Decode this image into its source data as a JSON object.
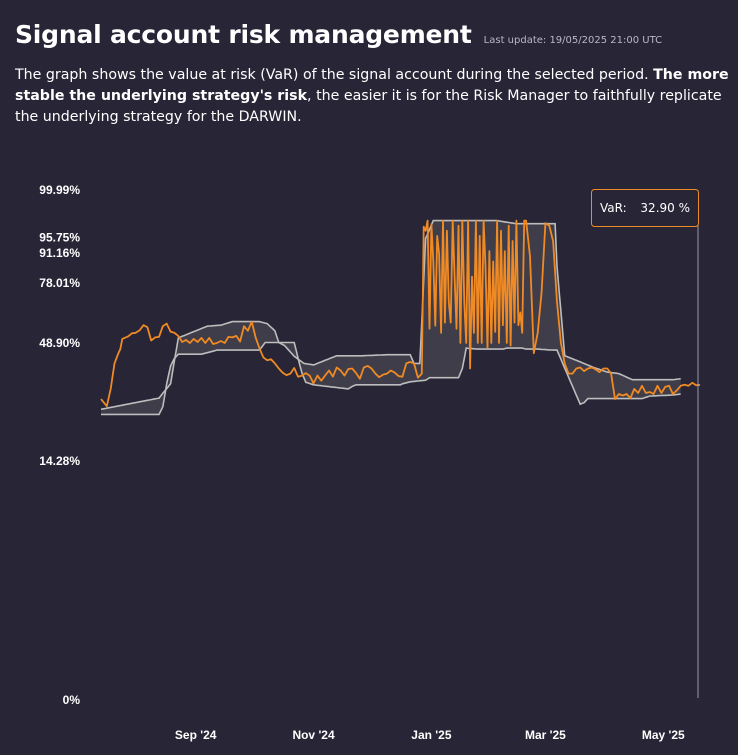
{
  "header": {
    "title": "Signal account risk management",
    "last_update": "Last update: 19/05/2025 21:00 UTC"
  },
  "description": {
    "part1": "The graph shows the value at risk (VaR) of the signal account during the selected period. ",
    "bold": "The more stable the underlying strategy's risk",
    "part2": ", the easier it is for the Risk Manager to faithfully replicate the underlying strategy for the DARWIN."
  },
  "tooltip": {
    "label": "VaR:",
    "value": "32.90 %"
  },
  "colors": {
    "background": "#272536",
    "var_line": "#f08a24",
    "band_fill": "#3f3d49",
    "band_line": "#bdbdbd",
    "tooltip_border": "#f08a24"
  },
  "chart_data": {
    "type": "area",
    "y_tick_labels": [
      "99.99%",
      "95.75%",
      "91.16%",
      "78.01%",
      "48.90%",
      "14.28%",
      "0%"
    ],
    "y_tick_fractions": [
      1.0,
      0.907,
      0.876,
      0.818,
      0.7,
      0.469,
      0.0
    ],
    "x_tick_labels": [
      "Sep '24",
      "Nov '24",
      "Jan '25",
      "Mar '25",
      "May '25"
    ],
    "x_tick_days": [
      49,
      110,
      171,
      230,
      291
    ],
    "x_range": [
      0,
      310
    ],
    "legend": "none",
    "grid": false,
    "band": {
      "lower_keys": [
        [
          0,
          0.56
        ],
        [
          30,
          0.56
        ],
        [
          32,
          0.575
        ],
        [
          34,
          0.62
        ],
        [
          36,
          0.655
        ],
        [
          38,
          0.67
        ],
        [
          40,
          0.678
        ],
        [
          52,
          0.678
        ],
        [
          60,
          0.686
        ],
        [
          70,
          0.686
        ],
        [
          82,
          0.686
        ],
        [
          85,
          0.701
        ],
        [
          100,
          0.701
        ],
        [
          102,
          0.67
        ],
        [
          104,
          0.641
        ],
        [
          106,
          0.623
        ],
        [
          110,
          0.618
        ],
        [
          128,
          0.61
        ],
        [
          130,
          0.615
        ],
        [
          132,
          0.618
        ],
        [
          155,
          0.618
        ],
        [
          156,
          0.62
        ],
        [
          160,
          0.624
        ],
        [
          168,
          0.627
        ],
        [
          170,
          0.632
        ],
        [
          185,
          0.632
        ],
        [
          187,
          0.65
        ],
        [
          189,
          0.69
        ],
        [
          195,
          0.688
        ],
        [
          200,
          0.688
        ],
        [
          208,
          0.688
        ],
        [
          210,
          0.69
        ],
        [
          218,
          0.69
        ],
        [
          220,
          0.688
        ],
        [
          226,
          0.688
        ],
        [
          234,
          0.686
        ],
        [
          236,
          0.686
        ],
        [
          248,
          0.58
        ],
        [
          250,
          0.583
        ],
        [
          252,
          0.591
        ],
        [
          260,
          0.591
        ],
        [
          272,
          0.591
        ],
        [
          274,
          0.591
        ],
        [
          280,
          0.591
        ],
        [
          284,
          0.596
        ],
        [
          296,
          0.598
        ],
        [
          300,
          0.6
        ]
      ],
      "upper_keys": [
        [
          0,
          0.57
        ],
        [
          30,
          0.592
        ],
        [
          36,
          0.62
        ],
        [
          40,
          0.71
        ],
        [
          55,
          0.733
        ],
        [
          62,
          0.735
        ],
        [
          68,
          0.742
        ],
        [
          70,
          0.742
        ],
        [
          82,
          0.742
        ],
        [
          86,
          0.738
        ],
        [
          90,
          0.724
        ],
        [
          92,
          0.701
        ],
        [
          95,
          0.695
        ],
        [
          100,
          0.674
        ],
        [
          105,
          0.66
        ],
        [
          110,
          0.657
        ],
        [
          122,
          0.675
        ],
        [
          135,
          0.675
        ],
        [
          148,
          0.677
        ],
        [
          154,
          0.677
        ],
        [
          159,
          0.677
        ],
        [
          160,
          0.677
        ],
        [
          162,
          0.66
        ],
        [
          165,
          0.66
        ],
        [
          168,
          0.905
        ],
        [
          172,
          0.94
        ],
        [
          182,
          0.94
        ],
        [
          193,
          0.94
        ],
        [
          205,
          0.94
        ],
        [
          208,
          0.938
        ],
        [
          215,
          0.934
        ],
        [
          220,
          0.934
        ],
        [
          235,
          0.934
        ],
        [
          236,
          0.85
        ],
        [
          240,
          0.675
        ],
        [
          248,
          0.663
        ],
        [
          255,
          0.652
        ],
        [
          262,
          0.643
        ],
        [
          268,
          0.64
        ],
        [
          275,
          0.628
        ],
        [
          280,
          0.628
        ],
        [
          288,
          0.628
        ],
        [
          296,
          0.628
        ],
        [
          300,
          0.63
        ]
      ]
    },
    "var_series": {
      "last_value_pct": 32.9,
      "keys": [
        [
          0,
          0.59
        ],
        [
          3,
          0.576
        ],
        [
          5,
          0.61
        ],
        [
          7,
          0.66
        ],
        [
          9,
          0.68
        ],
        [
          10,
          0.688
        ],
        [
          11,
          0.708
        ],
        [
          14,
          0.713
        ],
        [
          16,
          0.719
        ],
        [
          18,
          0.72
        ],
        [
          20,
          0.725
        ],
        [
          22,
          0.735
        ],
        [
          24,
          0.731
        ],
        [
          26,
          0.705
        ],
        [
          28,
          0.711
        ],
        [
          30,
          0.712
        ],
        [
          32,
          0.733
        ],
        [
          34,
          0.738
        ],
        [
          36,
          0.722
        ],
        [
          38,
          0.72
        ],
        [
          40,
          0.714
        ],
        [
          42,
          0.702
        ],
        [
          44,
          0.706
        ],
        [
          46,
          0.7
        ],
        [
          48,
          0.708
        ],
        [
          50,
          0.702
        ],
        [
          52,
          0.71
        ],
        [
          54,
          0.7
        ],
        [
          56,
          0.71
        ],
        [
          58,
          0.698
        ],
        [
          60,
          0.7
        ],
        [
          62,
          0.704
        ],
        [
          64,
          0.7
        ],
        [
          66,
          0.712
        ],
        [
          68,
          0.711
        ],
        [
          70,
          0.714
        ],
        [
          72,
          0.703
        ],
        [
          74,
          0.733
        ],
        [
          76,
          0.724
        ],
        [
          78,
          0.742
        ],
        [
          80,
          0.711
        ],
        [
          82,
          0.69
        ],
        [
          84,
          0.672
        ],
        [
          86,
          0.666
        ],
        [
          88,
          0.668
        ],
        [
          90,
          0.66
        ],
        [
          92,
          0.65
        ],
        [
          94,
          0.642
        ],
        [
          96,
          0.637
        ],
        [
          98,
          0.64
        ],
        [
          100,
          0.651
        ],
        [
          102,
          0.634
        ],
        [
          104,
          0.636
        ],
        [
          106,
          0.641
        ],
        [
          108,
          0.636
        ],
        [
          110,
          0.621
        ],
        [
          112,
          0.636
        ],
        [
          114,
          0.626
        ],
        [
          116,
          0.636
        ],
        [
          118,
          0.646
        ],
        [
          120,
          0.634
        ],
        [
          122,
          0.652
        ],
        [
          124,
          0.646
        ],
        [
          126,
          0.636
        ],
        [
          128,
          0.649
        ],
        [
          130,
          0.65
        ],
        [
          132,
          0.641
        ],
        [
          134,
          0.63
        ],
        [
          136,
          0.652
        ],
        [
          138,
          0.655
        ],
        [
          140,
          0.65
        ],
        [
          142,
          0.64
        ],
        [
          144,
          0.633
        ],
        [
          146,
          0.638
        ],
        [
          148,
          0.64
        ],
        [
          150,
          0.646
        ],
        [
          152,
          0.642
        ],
        [
          154,
          0.635
        ],
        [
          156,
          0.634
        ],
        [
          158,
          0.66
        ],
        [
          160,
          0.663
        ],
        [
          162,
          0.66
        ],
        [
          164,
          0.632
        ],
        [
          166,
          0.64
        ],
        [
          167,
          0.928
        ],
        [
          168,
          0.92
        ],
        [
          169,
          0.94
        ],
        [
          170,
          0.728
        ],
        [
          171,
          0.933
        ],
        [
          172,
          0.86
        ],
        [
          173,
          0.734
        ],
        [
          174,
          0.91
        ],
        [
          175,
          0.875
        ],
        [
          176,
          0.72
        ],
        [
          177,
          0.94
        ],
        [
          178,
          0.74
        ],
        [
          179,
          0.92
        ],
        [
          180,
          0.78
        ],
        [
          181,
          0.74
        ],
        [
          182,
          0.94
        ],
        [
          183,
          0.83
        ],
        [
          184,
          0.728
        ],
        [
          185,
          0.93
        ],
        [
          186,
          0.7
        ],
        [
          187,
          0.94
        ],
        [
          188,
          0.78
        ],
        [
          189,
          0.7
        ],
        [
          190,
          0.94
        ],
        [
          191,
          0.65
        ],
        [
          192,
          0.83
        ],
        [
          193,
          0.72
        ],
        [
          194,
          0.94
        ],
        [
          195,
          0.7
        ],
        [
          196,
          0.91
        ],
        [
          197,
          0.7
        ],
        [
          198,
          0.94
        ],
        [
          199,
          0.85
        ],
        [
          200,
          0.69
        ],
        [
          201,
          0.88
        ],
        [
          202,
          0.7
        ],
        [
          203,
          0.86
        ],
        [
          204,
          0.722
        ],
        [
          205,
          0.94
        ],
        [
          206,
          0.7
        ],
        [
          207,
          0.92
        ],
        [
          208,
          0.735
        ],
        [
          209,
          0.88
        ],
        [
          210,
          0.7
        ],
        [
          211,
          0.93
        ],
        [
          212,
          0.695
        ],
        [
          213,
          0.9
        ],
        [
          214,
          0.74
        ],
        [
          215,
          0.94
        ],
        [
          216,
          0.735
        ],
        [
          217,
          0.76
        ],
        [
          218,
          0.72
        ],
        [
          219,
          0.94
        ],
        [
          220,
          0.94
        ],
        [
          222,
          0.87
        ],
        [
          224,
          0.68
        ],
        [
          226,
          0.72
        ],
        [
          228,
          0.8
        ],
        [
          230,
          0.935
        ],
        [
          232,
          0.93
        ],
        [
          234,
          0.9
        ],
        [
          236,
          0.78
        ],
        [
          238,
          0.7
        ],
        [
          240,
          0.66
        ],
        [
          242,
          0.64
        ],
        [
          244,
          0.64
        ],
        [
          246,
          0.65
        ],
        [
          248,
          0.652
        ],
        [
          250,
          0.645
        ],
        [
          252,
          0.65
        ],
        [
          254,
          0.652
        ],
        [
          256,
          0.648
        ],
        [
          258,
          0.643
        ],
        [
          260,
          0.65
        ],
        [
          262,
          0.65
        ],
        [
          264,
          0.64
        ],
        [
          266,
          0.59
        ],
        [
          268,
          0.6
        ],
        [
          270,
          0.597
        ],
        [
          272,
          0.6
        ],
        [
          274,
          0.592
        ],
        [
          276,
          0.61
        ],
        [
          278,
          0.602
        ],
        [
          280,
          0.616
        ],
        [
          282,
          0.602
        ],
        [
          284,
          0.604
        ],
        [
          286,
          0.6
        ],
        [
          288,
          0.616
        ],
        [
          290,
          0.602
        ],
        [
          292,
          0.614
        ],
        [
          294,
          0.616
        ],
        [
          296,
          0.6
        ],
        [
          298,
          0.607
        ],
        [
          300,
          0.616
        ],
        [
          302,
          0.618
        ],
        [
          304,
          0.616
        ],
        [
          306,
          0.622
        ],
        [
          308,
          0.617
        ],
        [
          310,
          0.618
        ]
      ]
    }
  }
}
